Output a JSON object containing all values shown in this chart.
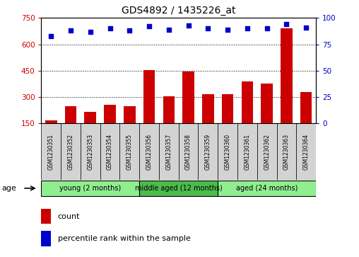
{
  "title": "GDS4892 / 1435226_at",
  "samples": [
    "GSM1230351",
    "GSM1230352",
    "GSM1230353",
    "GSM1230354",
    "GSM1230355",
    "GSM1230356",
    "GSM1230357",
    "GSM1230358",
    "GSM1230359",
    "GSM1230360",
    "GSM1230361",
    "GSM1230362",
    "GSM1230363",
    "GSM1230364"
  ],
  "counts": [
    168,
    248,
    215,
    255,
    248,
    455,
    305,
    447,
    318,
    318,
    390,
    375,
    690,
    330
  ],
  "percentiles": [
    83,
    88,
    87,
    90,
    88,
    92,
    89,
    93,
    90,
    89,
    90,
    90,
    94,
    91
  ],
  "groups": [
    {
      "label": "young (2 months)",
      "start": 0,
      "end": 5,
      "color": "#90ee90"
    },
    {
      "label": "middle aged (12 months)",
      "start": 5,
      "end": 9,
      "color": "#4cbb4c"
    },
    {
      "label": "aged (24 months)",
      "start": 9,
      "end": 14,
      "color": "#90ee90"
    }
  ],
  "bar_color": "#cc0000",
  "dot_color": "#0000cc",
  "ylim_left": [
    150,
    750
  ],
  "ylim_right": [
    0,
    100
  ],
  "yticks_left": [
    150,
    300,
    450,
    600,
    750
  ],
  "yticks_right": [
    0,
    25,
    50,
    75,
    100
  ],
  "grid_lines": [
    300,
    450,
    600
  ],
  "plot_bg": "#ffffff",
  "tick_color_left": "#cc0000",
  "tick_color_right": "#0000cc",
  "age_label": "age",
  "legend_count": "count",
  "legend_percentile": "percentile rank within the sample",
  "col_bg": "#d3d3d3"
}
